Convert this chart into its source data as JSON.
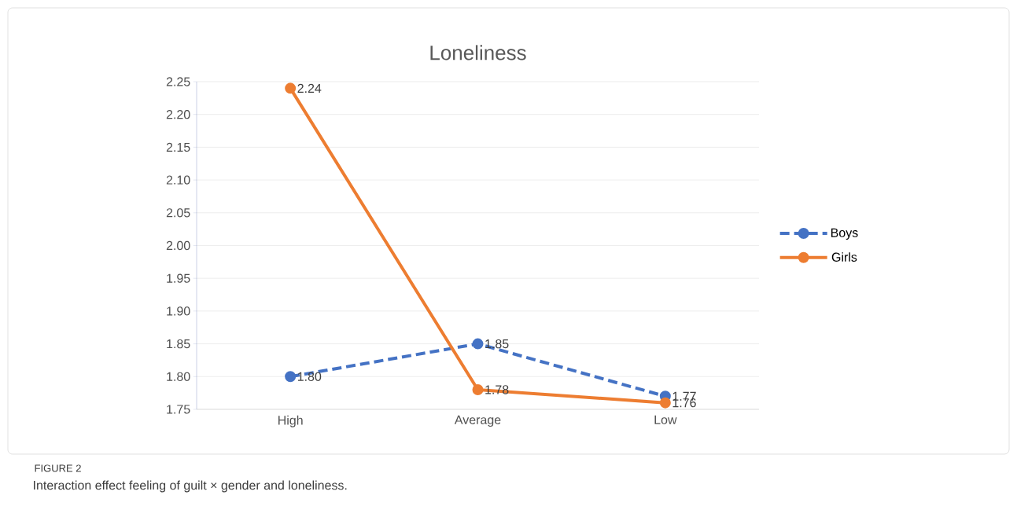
{
  "chart_data": {
    "type": "line",
    "title": "Loneliness",
    "categories": [
      "High",
      "Average",
      "Low"
    ],
    "series": [
      {
        "name": "Boys",
        "color": "#4472c4",
        "values": [
          1.8,
          1.85,
          1.77
        ],
        "value_labels": [
          "1.80",
          "1.85",
          "1.77"
        ],
        "line_style": "dashed"
      },
      {
        "name": "Girls",
        "color": "#ed7d31",
        "values": [
          2.24,
          1.78,
          1.76
        ],
        "value_labels": [
          "2.24",
          "1.78",
          "1.76"
        ],
        "line_style": "solid"
      }
    ],
    "ylim": [
      1.75,
      2.25
    ],
    "yticks": [
      1.75,
      {
        "value": 1.8,
        "label": "1.80"
      },
      1.85,
      {
        "value": 1.9,
        "label": "1.90"
      },
      1.95,
      {
        "value": 2.0,
        "label": "2.00"
      },
      2.05,
      {
        "value": 2.1,
        "label": "2.10"
      },
      2.15,
      {
        "value": 2.2,
        "label": "2.20"
      },
      2.25
    ],
    "grid": "y",
    "legend": "right",
    "marker": "circle",
    "annotations": [
      "FIGURE 2",
      "Interaction effect feeling of guilt × gender and loneliness."
    ]
  }
}
